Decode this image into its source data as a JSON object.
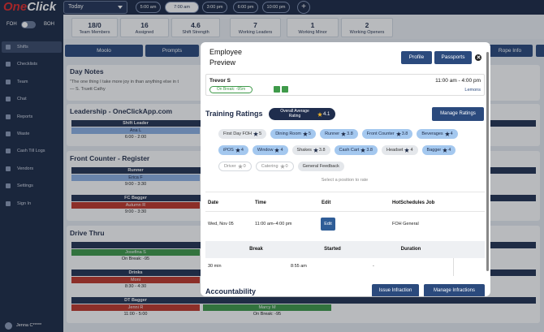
{
  "sidebar": {
    "logo_one": "One",
    "logo_click": "Click",
    "toggle": [
      "FOH",
      "BOH"
    ],
    "menu": [
      "Shifts",
      "Checklists",
      "Team",
      "Chat",
      "Reports",
      "Waste",
      "Cash Till Logs",
      "Vendors",
      "Settings",
      "Sign In"
    ],
    "active": "Shifts",
    "user": "Jenna C*****"
  },
  "topbar": {
    "day": "Today",
    "times": [
      "5:00 am",
      "7:00 am",
      "3:00 pm",
      "6:00 pm",
      "10:00 pm"
    ],
    "active_time": "7:00 am",
    "add": "+"
  },
  "stats": [
    {
      "value": "18/0",
      "label": "Team Members"
    },
    {
      "value": "16",
      "label": "Assigned"
    },
    {
      "value": "4.6",
      "label": "Shift Strength"
    },
    {
      "value": "7",
      "label": "Working Leaders"
    },
    {
      "value": "1",
      "label": "Working Minor"
    },
    {
      "value": "2",
      "label": "Working Openers"
    }
  ],
  "toolbar": {
    "left": [
      "Moolo",
      "Prompts"
    ],
    "right": "Rope Info"
  },
  "day_notes": {
    "title": "Day Notes",
    "quote": "\"The one thing I take more joy in than anything else in t",
    "author": "— S. Truett Cathy"
  },
  "sections": [
    {
      "title": "Leadership - OneClickApp.com",
      "positions": [
        {
          "name": "Shift Leader",
          "shifts": [
            {
              "name": "Ana L",
              "time": "6:00 - 2:00",
              "color": "#8fb2e6"
            }
          ]
        }
      ]
    },
    {
      "title": "Front Counter - Register",
      "positions": [
        {
          "name": "Runner",
          "shifts": [
            {
              "name": "Erica F",
              "time": "9:00 - 3:30",
              "color": "#8fb2e6"
            }
          ]
        },
        {
          "name": "FC Bagger",
          "shifts": [
            {
              "name": "Autumn R",
              "time": "9:00 - 3:30",
              "color": "#c0392b"
            }
          ]
        }
      ]
    },
    {
      "title": "Drive Thru",
      "positions": [
        {
          "shifts": [
            {
              "name": "Josefina S",
              "time": "On Break: -95",
              "color": "#3f9a4a"
            }
          ]
        },
        {
          "name": "Drinks",
          "shifts": [
            {
              "name": "Moni",
              "time": "8:30 - 4:30",
              "color": "#c0392b"
            }
          ]
        },
        {
          "name": "DT Bagger",
          "shifts": [
            {
              "name": "Jenni R",
              "time": "11:00 - 5:00",
              "color": "#c0392b"
            },
            {
              "name": "Marcy M",
              "time": "On Break: -95",
              "color": "#3f9a4a"
            }
          ]
        }
      ]
    }
  ],
  "modal": {
    "title": [
      "Employee",
      "Preview"
    ],
    "buttons": [
      "Profile",
      "Passports"
    ],
    "employee": {
      "name": "Trevor S",
      "status": "On Break: -95m",
      "time": "11:00 am - 4:00 pm",
      "location": "Lemons"
    },
    "training": {
      "title": "Training Ratings",
      "overall_label": "Overall Average Rating",
      "overall": 4.1,
      "manage": "Manage Ratings",
      "rows": [
        [
          {
            "name": "First Day FOH",
            "rating": 5,
            "style": "gray"
          },
          {
            "name": "Dining Room",
            "rating": 5,
            "style": "blue"
          },
          {
            "name": "Runner",
            "rating": 3.8,
            "style": "blue"
          },
          {
            "name": "Front Counter",
            "rating": 3.8,
            "style": "blue"
          },
          {
            "name": "Beverages",
            "rating": 4,
            "style": "blue"
          }
        ],
        [
          {
            "name": "iPOS",
            "rating": 4,
            "style": "blue"
          },
          {
            "name": "Window",
            "rating": 4,
            "style": "blue"
          },
          {
            "name": "Shakes",
            "rating": 3.8,
            "style": "gray"
          },
          {
            "name": "Cash Cart",
            "rating": 3.8,
            "style": "blue"
          },
          {
            "name": "Headset",
            "rating": 4,
            "style": "gray"
          },
          {
            "name": "Bagger",
            "rating": 4,
            "style": "blue"
          }
        ],
        [
          {
            "name": "Driver",
            "rating": 0,
            "style": "outline"
          },
          {
            "name": "Catering",
            "rating": 0,
            "style": "outline"
          },
          {
            "name": "General Feedback",
            "style": "gray"
          }
        ]
      ],
      "hint": "Select a position to rate"
    },
    "schedule": {
      "headers": [
        "Date",
        "Time",
        "Edit",
        "HotSchedules Job"
      ],
      "row": [
        "Wed, Nov 05",
        "11:00 am–4:00 pm",
        "Edit",
        "FOH General"
      ]
    },
    "breaks": {
      "headers": [
        "Break",
        "Started",
        "Duration"
      ],
      "row": [
        "30 min",
        "8:55 am",
        "-"
      ]
    },
    "accountability": {
      "title": "Accountability",
      "buttons": [
        "Issue Infraction",
        "Manage Infractions"
      ]
    }
  }
}
